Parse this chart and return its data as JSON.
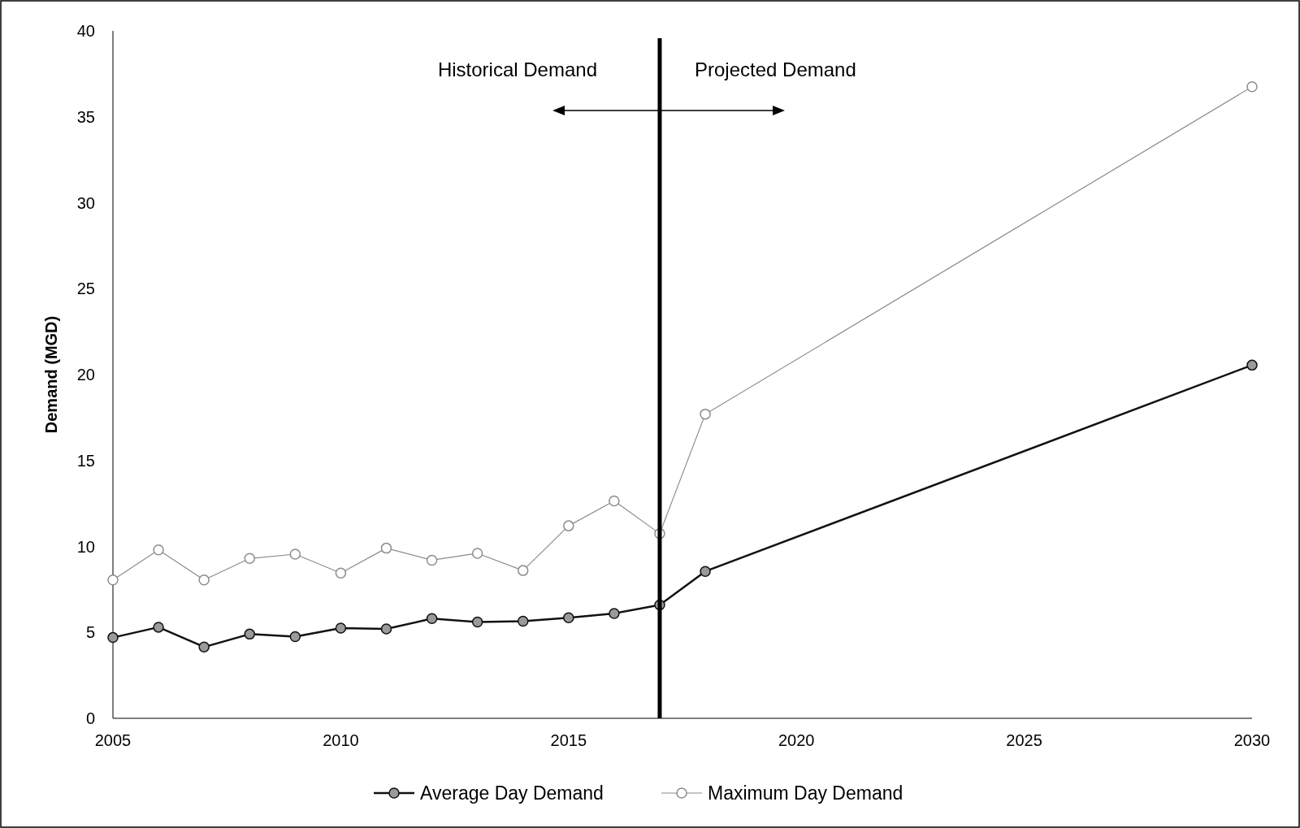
{
  "chart_data": {
    "type": "line",
    "ylabel": "Demand (MGD)",
    "x": [
      2005,
      2006,
      2007,
      2008,
      2009,
      2010,
      2011,
      2012,
      2013,
      2014,
      2015,
      2016,
      2017,
      2018,
      2030
    ],
    "series": [
      {
        "name": "Average Day Demand",
        "color": "#111111",
        "values": [
          4.7,
          5.3,
          4.15,
          4.9,
          4.75,
          5.25,
          5.2,
          5.8,
          5.6,
          5.65,
          5.85,
          6.1,
          6.6,
          8.55,
          20.55
        ]
      },
      {
        "name": "Maximum Day Demand",
        "color": "#8c8c8c",
        "values": [
          8.05,
          9.8,
          8.05,
          9.3,
          9.55,
          8.45,
          9.9,
          9.2,
          9.6,
          8.6,
          11.2,
          12.65,
          10.75,
          17.7,
          36.75
        ]
      }
    ],
    "xlim": [
      2005,
      2030
    ],
    "xticks": [
      2005,
      2010,
      2015,
      2020,
      2025,
      2030
    ],
    "ylim": [
      0,
      40
    ],
    "yticks": [
      0,
      5,
      10,
      15,
      20,
      25,
      30,
      35,
      40
    ],
    "ref_lines": [
      {
        "axis": "x",
        "value": 2017,
        "color": "#000000"
      }
    ],
    "annotations": [
      "Historical Demand",
      "Projected Demand"
    ],
    "grid": false,
    "legend": "bottom",
    "marker": "circle",
    "line_style": "solid"
  }
}
